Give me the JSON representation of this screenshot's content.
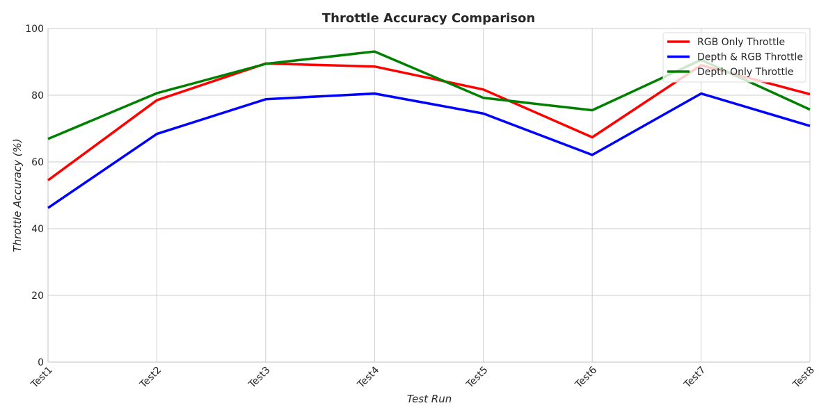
{
  "chart_data": {
    "type": "line",
    "title": "Throttle Accuracy Comparison",
    "xlabel": "Test Run",
    "ylabel": "Throttle Accuracy (%)",
    "categories": [
      "Test1",
      "Test2",
      "Test3",
      "Test4",
      "Test5",
      "Test6",
      "Test7",
      "Test8"
    ],
    "ylim": [
      0,
      100
    ],
    "yticks": [
      0,
      20,
      40,
      60,
      80,
      100
    ],
    "grid": true,
    "legend_position": "top-right",
    "series": [
      {
        "name": "RGB Only Throttle",
        "color": "#ff0000",
        "values": [
          54.5,
          78.5,
          89.5,
          88.6,
          81.7,
          67.4,
          89.0,
          80.3
        ]
      },
      {
        "name": "Depth & RGB Throttle",
        "color": "#0000ff",
        "values": [
          46.2,
          68.4,
          78.8,
          80.5,
          74.5,
          62.1,
          80.5,
          70.8
        ]
      },
      {
        "name": "Depth Only Throttle",
        "color": "#008000",
        "values": [
          66.9,
          80.6,
          89.4,
          93.1,
          79.2,
          75.5,
          90.6,
          75.7
        ]
      }
    ]
  }
}
